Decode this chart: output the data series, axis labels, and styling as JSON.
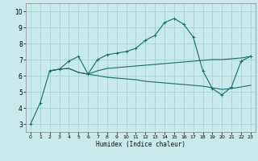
{
  "xlabel": "Humidex (Indice chaleur)",
  "bg_color": "#c8eaea",
  "grid_color": "#a0cccc",
  "line_color": "#1a6b6b",
  "xlim": [
    -0.5,
    23.5
  ],
  "ylim": [
    2.5,
    10.5
  ],
  "xticks": [
    0,
    1,
    2,
    3,
    4,
    5,
    6,
    7,
    8,
    9,
    10,
    11,
    12,
    13,
    14,
    15,
    16,
    17,
    18,
    19,
    20,
    21,
    22,
    23
  ],
  "yticks": [
    3,
    4,
    5,
    6,
    7,
    8,
    9,
    10
  ],
  "line1_x": [
    0,
    1,
    2,
    3,
    4,
    5,
    6,
    7,
    8,
    9,
    10,
    11,
    12,
    13,
    14,
    15,
    16,
    17,
    18,
    19,
    20,
    21,
    22,
    23
  ],
  "line1_y": [
    3.0,
    4.3,
    6.3,
    6.4,
    6.9,
    7.2,
    6.1,
    7.0,
    7.3,
    7.4,
    7.5,
    7.7,
    8.2,
    8.5,
    9.3,
    9.55,
    9.2,
    8.4,
    6.3,
    5.2,
    4.8,
    5.3,
    6.9,
    7.2
  ],
  "line2_x": [
    2,
    3,
    4,
    5,
    6,
    7,
    8,
    9,
    10,
    11,
    12,
    13,
    14,
    15,
    16,
    17,
    18,
    19,
    20,
    21,
    22,
    23
  ],
  "line2_y": [
    6.3,
    6.4,
    6.45,
    6.2,
    6.1,
    6.3,
    6.45,
    6.5,
    6.55,
    6.6,
    6.65,
    6.7,
    6.75,
    6.8,
    6.85,
    6.9,
    6.95,
    7.0,
    7.0,
    7.05,
    7.1,
    7.2
  ],
  "line3_x": [
    2,
    3,
    4,
    5,
    6,
    7,
    8,
    9,
    10,
    11,
    12,
    13,
    14,
    15,
    16,
    17,
    18,
    19,
    20,
    21,
    22,
    23
  ],
  "line3_y": [
    6.3,
    6.4,
    6.45,
    6.2,
    6.1,
    6.0,
    5.9,
    5.85,
    5.8,
    5.75,
    5.65,
    5.6,
    5.55,
    5.5,
    5.45,
    5.4,
    5.35,
    5.25,
    5.15,
    5.2,
    5.3,
    5.4
  ]
}
